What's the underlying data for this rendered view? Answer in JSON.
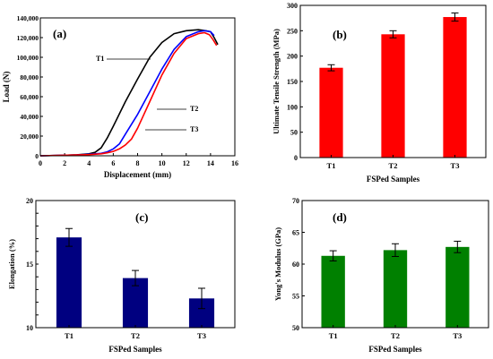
{
  "chart_data": [
    {
      "type": "line",
      "panel_label": "(a)",
      "xlabel": "Displacement (mm)",
      "ylabel": "Load (N)",
      "xlim": [
        0,
        16
      ],
      "ylim": [
        0,
        140000
      ],
      "xticks": [
        "0",
        "2",
        "4",
        "6",
        "8",
        "10",
        "12",
        "14",
        "16"
      ],
      "yticks": [
        "0",
        "20,000",
        "40,000",
        "60,000",
        "80,000",
        "100,000",
        "120,000",
        "140,000"
      ],
      "series": [
        {
          "name": "T1",
          "color": "#000000",
          "x": [
            0,
            2,
            3,
            4,
            4.5,
            5,
            5.5,
            6,
            7,
            8,
            9,
            10,
            11,
            12,
            13,
            13.6,
            14,
            14.3,
            14.6
          ],
          "y": [
            0,
            500,
            1000,
            2000,
            3500,
            8000,
            18000,
            30000,
            55000,
            78000,
            100000,
            115000,
            124000,
            127000,
            128000,
            127000,
            126000,
            120000,
            113000
          ]
        },
        {
          "name": "T2",
          "color": "#0000ff",
          "x": [
            0,
            3,
            4,
            5,
            5.5,
            6,
            6.5,
            7,
            8,
            9,
            10,
            11,
            12,
            13,
            13.5,
            14,
            14.3
          ],
          "y": [
            0,
            800,
            1500,
            2500,
            4000,
            7000,
            12000,
            22000,
            42000,
            65000,
            88000,
            108000,
            121000,
            126000,
            127000,
            126000,
            122000
          ]
        },
        {
          "name": "T3",
          "color": "#ff0000",
          "x": [
            0,
            3,
            4,
            5,
            5.5,
            6,
            6.5,
            7,
            7.5,
            8,
            9,
            10,
            11,
            12,
            13,
            13.5,
            13.9,
            14.2,
            14.5
          ],
          "y": [
            0,
            800,
            1200,
            2000,
            3000,
            4500,
            7000,
            11000,
            17000,
            28000,
            55000,
            82000,
            104000,
            119000,
            124000,
            125000,
            123000,
            118000,
            112000
          ]
        }
      ],
      "annotations": [
        "T1",
        "T2",
        "T3"
      ]
    },
    {
      "type": "bar",
      "panel_label": "(b)",
      "xlabel": "FSPed Samples",
      "ylabel": "Ultimate Tensile Strength (MPa)",
      "categories": [
        "T1",
        "T2",
        "T3"
      ],
      "values": [
        177,
        243,
        277
      ],
      "errors": [
        6,
        7,
        8
      ],
      "ylim": [
        0,
        300
      ],
      "yticks": [
        "0",
        "50",
        "100",
        "150",
        "200",
        "250",
        "300"
      ],
      "color": "#ff0000"
    },
    {
      "type": "bar",
      "panel_label": "(c)",
      "xlabel": "FSPed Samples",
      "ylabel": "Elongation (%)",
      "categories": [
        "T1",
        "T2",
        "T3"
      ],
      "values": [
        17.1,
        13.9,
        12.3
      ],
      "errors": [
        0.7,
        0.6,
        0.8
      ],
      "ylim": [
        10,
        20
      ],
      "yticks": [
        "10",
        "11",
        "12",
        "13",
        "14",
        "15",
        "16",
        "17",
        "18",
        "19",
        "20"
      ],
      "ytick_labels_shown": [
        "10",
        "",
        "",
        "",
        "",
        "15",
        "",
        "",
        "",
        "",
        "20"
      ],
      "color": "#000080"
    },
    {
      "type": "bar",
      "panel_label": "(d)",
      "xlabel": "FSPed Samples",
      "ylabel": "Yong's Modulus (GPa)",
      "categories": [
        "T1",
        "T2",
        "T3"
      ],
      "values": [
        61.3,
        62.2,
        62.7
      ],
      "errors": [
        0.8,
        1.0,
        0.9
      ],
      "ylim": [
        50,
        70
      ],
      "yticks": [
        "50",
        "55",
        "60",
        "65",
        "70"
      ],
      "color": "#008000"
    }
  ]
}
